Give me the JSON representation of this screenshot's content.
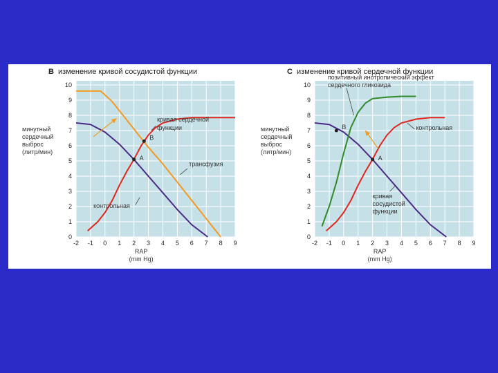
{
  "colors": {
    "slide_bg": "#2a2ac8",
    "plot_bg": "#c5e0e7",
    "grid": "#ffffff",
    "purple": "#4b2a85",
    "red": "#e1251b",
    "orange": "#f39a1f",
    "green": "#2f8a2a"
  },
  "chart_data": [
    {
      "type": "line",
      "letter": "B",
      "title": "изменение кривой сосудистой функции",
      "ylabel": "минутный сердечный выброс (литр/мин)",
      "xlabel": "RAP (mm Hg)",
      "xlim": [
        -2,
        9
      ],
      "ylim": [
        0,
        10
      ],
      "xticks": [
        "-2",
        "-1",
        "0",
        "1",
        "2",
        "3",
        "4",
        "5",
        "6",
        "7",
        "8",
        "9"
      ],
      "yticks": [
        "0",
        "1",
        "2",
        "3",
        "4",
        "5",
        "6",
        "7",
        "8",
        "9",
        "10"
      ],
      "series": [
        {
          "name": "контрольная",
          "color": "purple",
          "points": [
            [
              -2,
              7.5
            ],
            [
              -1,
              7.4
            ],
            [
              0,
              6.9
            ],
            [
              1,
              6.1
            ],
            [
              2,
              5.1
            ],
            [
              3,
              4.0
            ],
            [
              4,
              2.9
            ],
            [
              5,
              1.8
            ],
            [
              6,
              0.8
            ],
            [
              7.1,
              0
            ]
          ]
        },
        {
          "name": "трансфузия",
          "color": "orange",
          "points": [
            [
              -2,
              9.6
            ],
            [
              -0.3,
              9.6
            ],
            [
              0.5,
              8.9
            ],
            [
              1,
              8.3
            ],
            [
              2,
              7.1
            ],
            [
              3,
              5.9
            ],
            [
              4,
              4.8
            ],
            [
              5,
              3.6
            ],
            [
              6,
              2.4
            ],
            [
              7,
              1.2
            ],
            [
              8,
              0
            ]
          ]
        },
        {
          "name": "кривая сердечной функции",
          "color": "red",
          "points": [
            [
              -1.2,
              0.4
            ],
            [
              -0.5,
              1.0
            ],
            [
              0,
              1.6
            ],
            [
              0.5,
              2.4
            ],
            [
              1,
              3.4
            ],
            [
              1.5,
              4.3
            ],
            [
              2,
              5.1
            ],
            [
              2.5,
              6.0
            ],
            [
              3,
              6.7
            ],
            [
              3.5,
              7.2
            ],
            [
              4,
              7.5
            ],
            [
              5,
              7.75
            ],
            [
              6,
              7.85
            ],
            [
              7,
              7.85
            ],
            [
              9,
              7.85
            ]
          ]
        }
      ],
      "points": [
        {
          "label": "A",
          "x": 2,
          "y": 5.1
        },
        {
          "label": "B",
          "x": 2.7,
          "y": 6.3
        }
      ],
      "annotations": [
        {
          "text": "кривая сердечной функции"
        },
        {
          "text": "трансфузия"
        },
        {
          "text": "контрольная"
        }
      ]
    },
    {
      "type": "line",
      "letter": "C",
      "title": "изменение кривой сердечной функции",
      "ylabel": "минутный сердечный выброс (литр/мин)",
      "xlabel": "RAP (mm Hg)",
      "xlim": [
        -2,
        9
      ],
      "ylim": [
        0,
        10
      ],
      "xticks": [
        "-2",
        "-1",
        "0",
        "1",
        "2",
        "3",
        "4",
        "5",
        "6",
        "7",
        "8",
        "9"
      ],
      "yticks": [
        "0",
        "1",
        "2",
        "3",
        "4",
        "5",
        "6",
        "7",
        "8",
        "9",
        "10"
      ],
      "series": [
        {
          "name": "кривая сосудистой функции",
          "color": "purple",
          "points": [
            [
              -2,
              7.5
            ],
            [
              -1,
              7.4
            ],
            [
              0,
              6.9
            ],
            [
              1,
              6.1
            ],
            [
              2,
              5.1
            ],
            [
              3,
              4.0
            ],
            [
              4,
              2.9
            ],
            [
              5,
              1.8
            ],
            [
              6,
              0.8
            ],
            [
              7.1,
              0
            ]
          ]
        },
        {
          "name": "контрольная",
          "color": "red",
          "points": [
            [
              -1.2,
              0.4
            ],
            [
              -0.5,
              1.0
            ],
            [
              0,
              1.6
            ],
            [
              0.5,
              2.4
            ],
            [
              1,
              3.4
            ],
            [
              1.5,
              4.3
            ],
            [
              2,
              5.1
            ],
            [
              2.5,
              6.0
            ],
            [
              3,
              6.7
            ],
            [
              3.5,
              7.2
            ],
            [
              4,
              7.5
            ],
            [
              5,
              7.75
            ],
            [
              6,
              7.85
            ],
            [
              7,
              7.85
            ]
          ]
        },
        {
          "name": "позитивный инотропический эффект сердечного гликозида",
          "color": "green",
          "points": [
            [
              -1.5,
              0.7
            ],
            [
              -1,
              2.0
            ],
            [
              -0.5,
              3.6
            ],
            [
              0,
              5.5
            ],
            [
              0.5,
              7.2
            ],
            [
              1,
              8.2
            ],
            [
              1.5,
              8.8
            ],
            [
              2,
              9.1
            ],
            [
              3,
              9.2
            ],
            [
              4,
              9.25
            ],
            [
              5,
              9.25
            ]
          ]
        }
      ],
      "points": [
        {
          "label": "A",
          "x": 2,
          "y": 5.1
        },
        {
          "label": "B",
          "x": -0.5,
          "y": 7.0
        }
      ],
      "annotations": [
        {
          "text": "позитивный инотропический эффект сердечного гликозида"
        },
        {
          "text": "контрольная"
        },
        {
          "text": "кривая сосудистой функции"
        }
      ]
    }
  ]
}
